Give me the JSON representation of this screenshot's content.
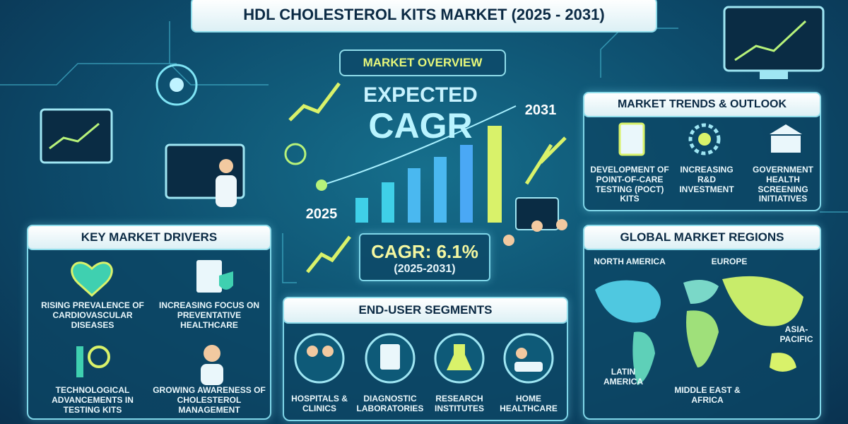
{
  "header": {
    "title": "HDL CHOLESTEROL KITS MARKET (2025 - 2031)"
  },
  "overview": {
    "title": "MARKET OVERVIEW",
    "expected": "EXPECTED",
    "cagr_word": "CAGR",
    "end_year": "2031",
    "start_year": "2025",
    "cagr": "CAGR: 6.1%",
    "period": "(2025-2031)"
  },
  "trends": {
    "title": "MARKET TRENDS & OUTLOOK",
    "items": [
      "DEVELOPMENT OF POINT-OF-CARE TESTING (POCT) KITS",
      "INCREASING R&D INVESTMENT",
      "GOVERNMENT HEALTH SCREENING INITIATIVES"
    ]
  },
  "drivers": {
    "title": "KEY MARKET DRIVERS",
    "items": [
      "RISING PREVALENCE OF CARDIOVASCULAR DISEASES",
      "INCREASING FOCUS ON PREVENTATIVE HEALTHCARE",
      "TECHNOLOGICAL ADVANCEMENTS IN TESTING KITS",
      "GROWING AWARENESS OF CHOLESTEROL MANAGEMENT"
    ]
  },
  "regions": {
    "title": "GLOBAL MARKET REGIONS",
    "items": [
      "NORTH AMERICA",
      "EUROPE",
      "ASIA-PACIFIC",
      "LATIN AMERICA",
      "MIDDLE EAST & AFRICA"
    ]
  },
  "segments": {
    "title": "END-USER SEGMENTS",
    "items": [
      "Hospitals & Clinics",
      "DIAGNOSTIC LABORATORIES",
      "RESEARCH INSTITUTES",
      "HOME HEALTHCARE"
    ]
  }
}
